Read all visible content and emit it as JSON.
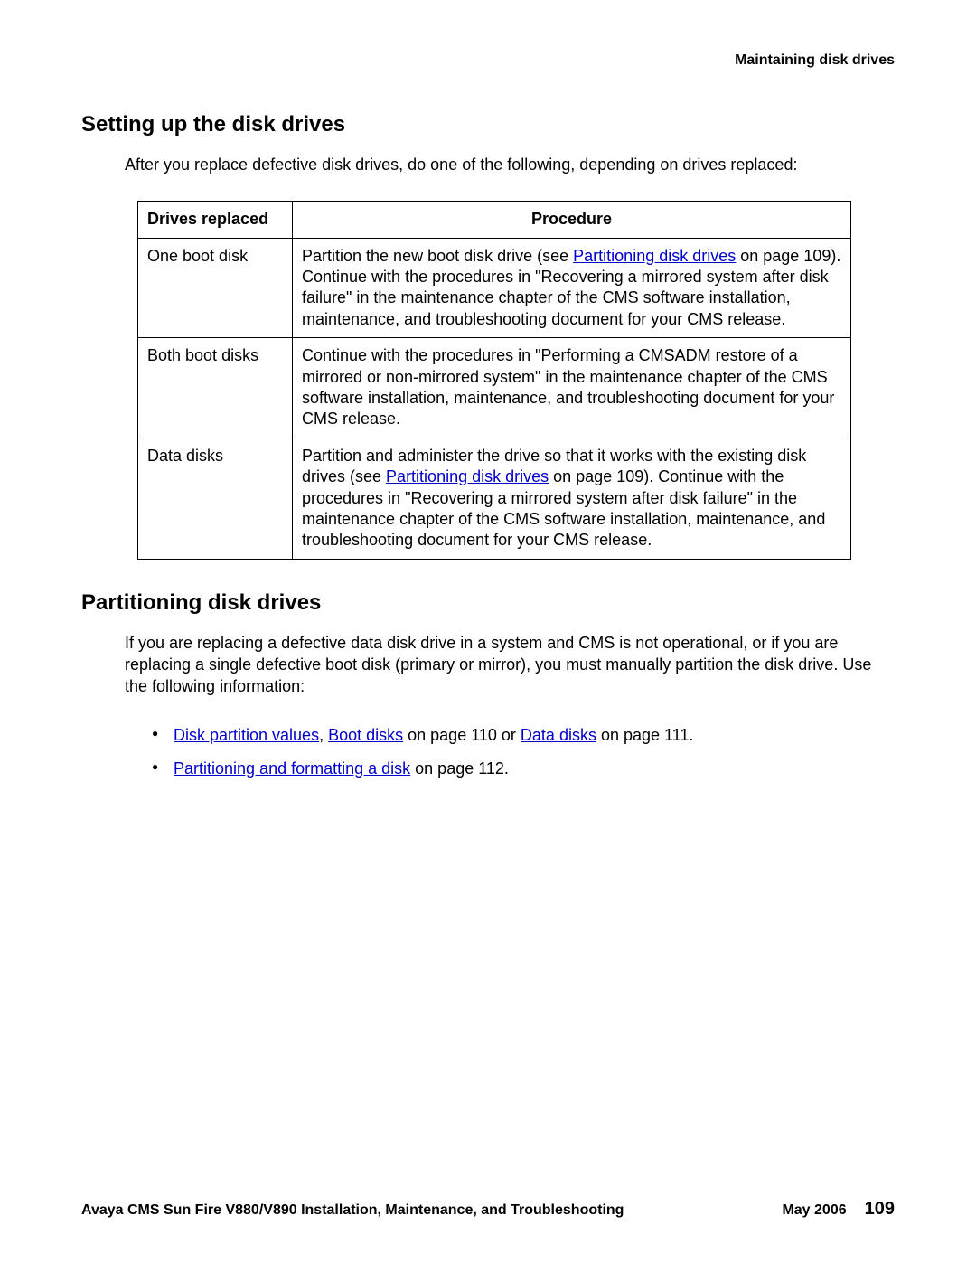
{
  "page": {
    "running_header": "Maintaining disk drives",
    "footer_title": "Avaya CMS Sun Fire V880/V890 Installation, Maintenance, and Troubleshooting",
    "footer_date": "May 2006",
    "page_number": "109"
  },
  "section1": {
    "heading": "Setting up the disk drives",
    "intro": "After you replace defective disk drives, do one of the following, depending on drives replaced:",
    "table": {
      "columns": [
        "Drives replaced",
        "Procedure"
      ],
      "rows": [
        {
          "drives": "One boot disk",
          "proc_before": "Partition the new boot disk drive (see ",
          "link_text": "Partitioning disk drives",
          "proc_after": " on page 109). Continue with the procedures in \"Recovering a mirrored system after disk failure\" in the maintenance chapter of the CMS software installation, maintenance, and troubleshooting document for your CMS release."
        },
        {
          "drives": "Both boot disks",
          "proc_full": "Continue with the procedures in \"Performing a CMSADM restore of a mirrored or non-mirrored system\" in the maintenance chapter of the CMS software installation, maintenance, and troubleshooting document for your CMS release."
        },
        {
          "drives": "Data disks",
          "proc_before": "Partition and administer the drive so that it works with the existing disk drives (see ",
          "link_text": "Partitioning disk drives",
          "proc_after": " on page 109). Continue with the procedures in \"Recovering a mirrored system after disk failure\" in the maintenance chapter of the CMS software installation, maintenance, and troubleshooting document for your CMS release."
        }
      ]
    }
  },
  "section2": {
    "heading": "Partitioning disk drives",
    "intro": "If you are replacing a defective data disk drive in a system and CMS is not operational, or if you are replacing a single defective boot disk (primary or mirror), you must manually partition the disk drive. Use the following information:",
    "bullets": [
      {
        "link1": "Disk partition values",
        "sep1": ", ",
        "link2": "Boot disks",
        "mid": " on page 110 or ",
        "link3": "Data disks",
        "tail": " on page 111."
      },
      {
        "link1": "Partitioning and formatting a disk",
        "tail": " on page 112."
      }
    ]
  },
  "colors": {
    "link": "#0000cc",
    "text": "#000000",
    "background": "#ffffff",
    "border": "#000000"
  },
  "typography": {
    "body_fontsize_pt": 13,
    "heading_fontsize_pt": 18,
    "footer_pagenum_fontsize_pt": 15,
    "font_family": "Arial"
  }
}
